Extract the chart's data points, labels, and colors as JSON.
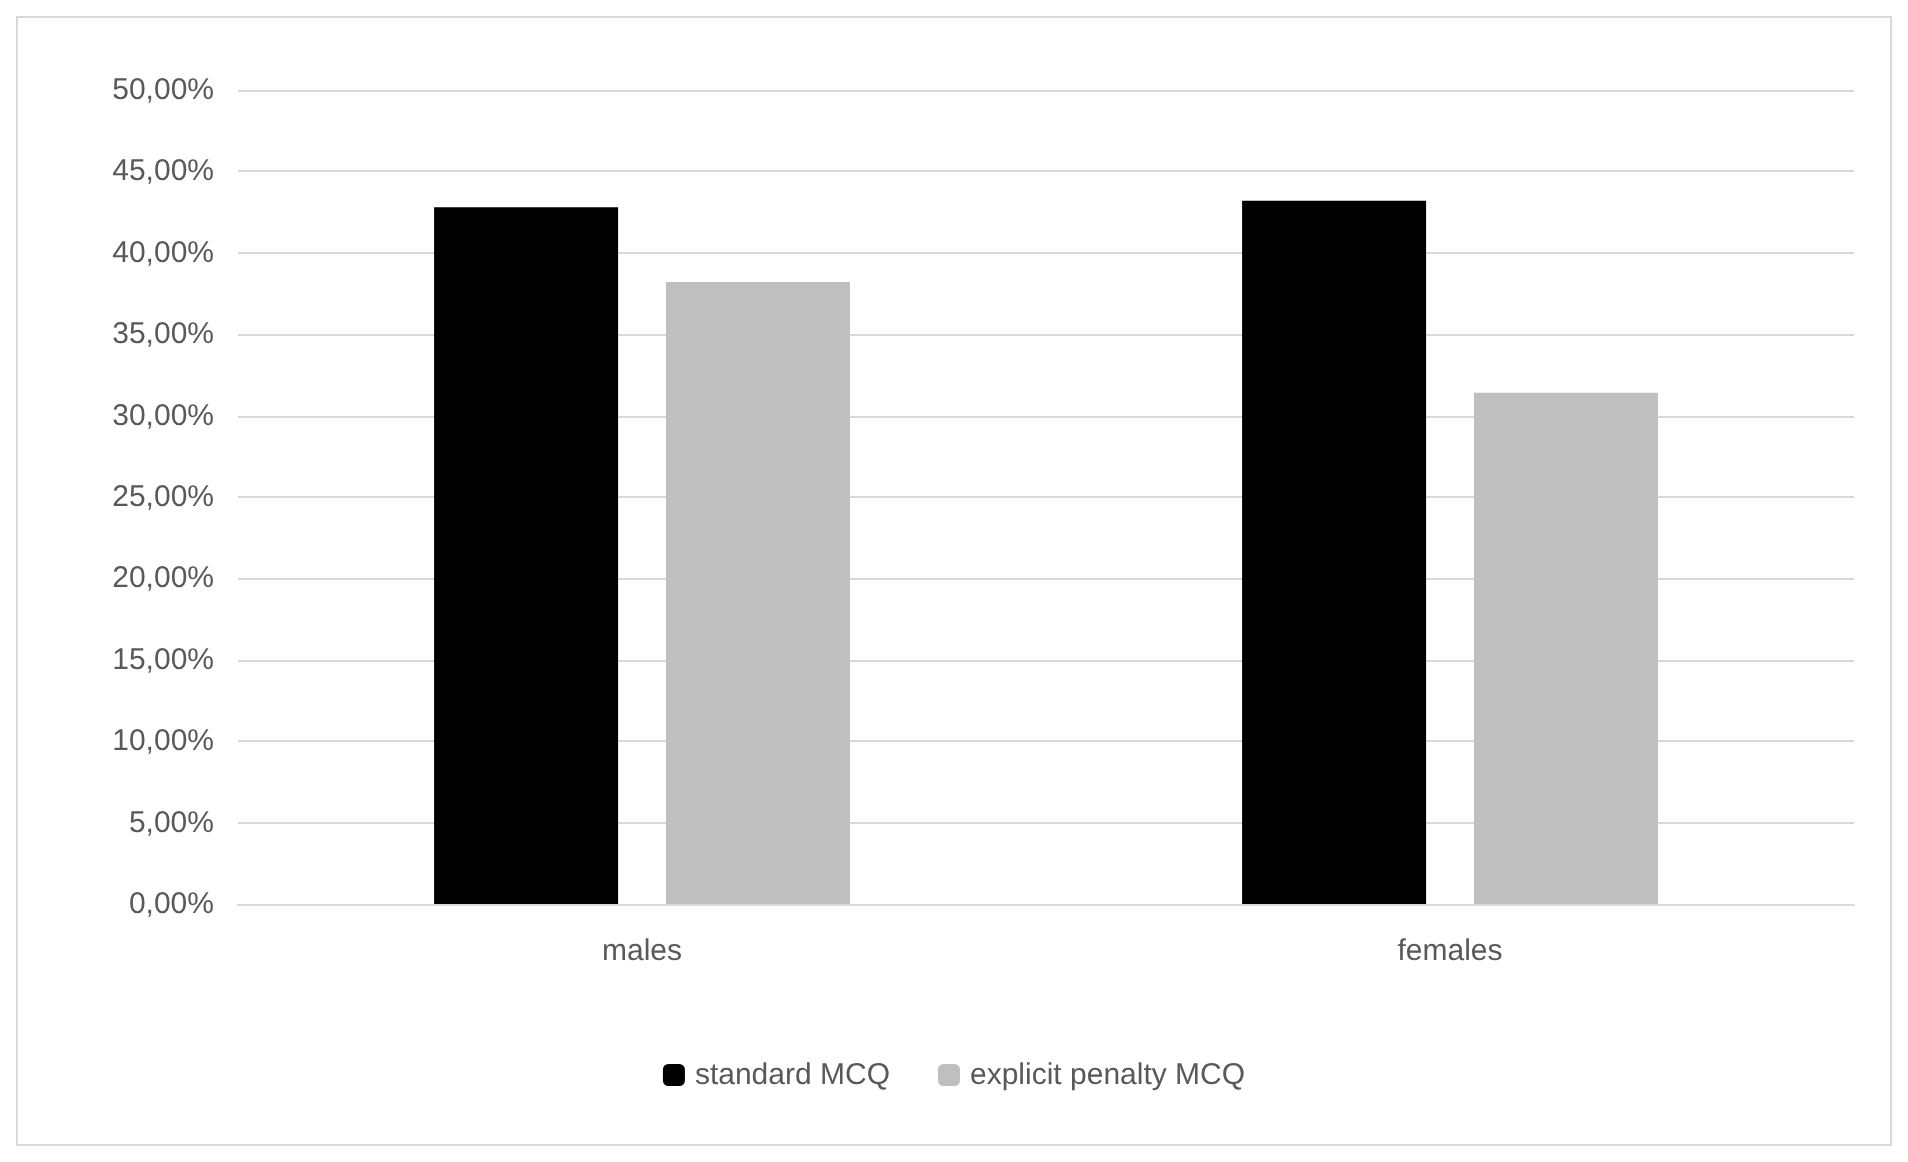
{
  "chart_data": {
    "type": "bar",
    "categories": [
      "males",
      "females"
    ],
    "series": [
      {
        "name": "standard MCQ",
        "color": "#000000",
        "values": [
          42.8,
          43.2
        ]
      },
      {
        "name": "explicit penalty MCQ",
        "color": "#bfbfbf",
        "values": [
          38.2,
          31.4
        ]
      }
    ],
    "ylim": [
      0,
      50
    ],
    "yticks": [
      {
        "value": 0,
        "label": "0,00%"
      },
      {
        "value": 5,
        "label": "5,00%"
      },
      {
        "value": 10,
        "label": "10,00%"
      },
      {
        "value": 15,
        "label": "15,00%"
      },
      {
        "value": 20,
        "label": "20,00%"
      },
      {
        "value": 25,
        "label": "25,00%"
      },
      {
        "value": 30,
        "label": "30,00%"
      },
      {
        "value": 35,
        "label": "35,00%"
      },
      {
        "value": 40,
        "label": "40,00%"
      },
      {
        "value": 45,
        "label": "45,00%"
      },
      {
        "value": 50,
        "label": "50,00%"
      }
    ],
    "grid": "y",
    "legend": "bottom"
  }
}
